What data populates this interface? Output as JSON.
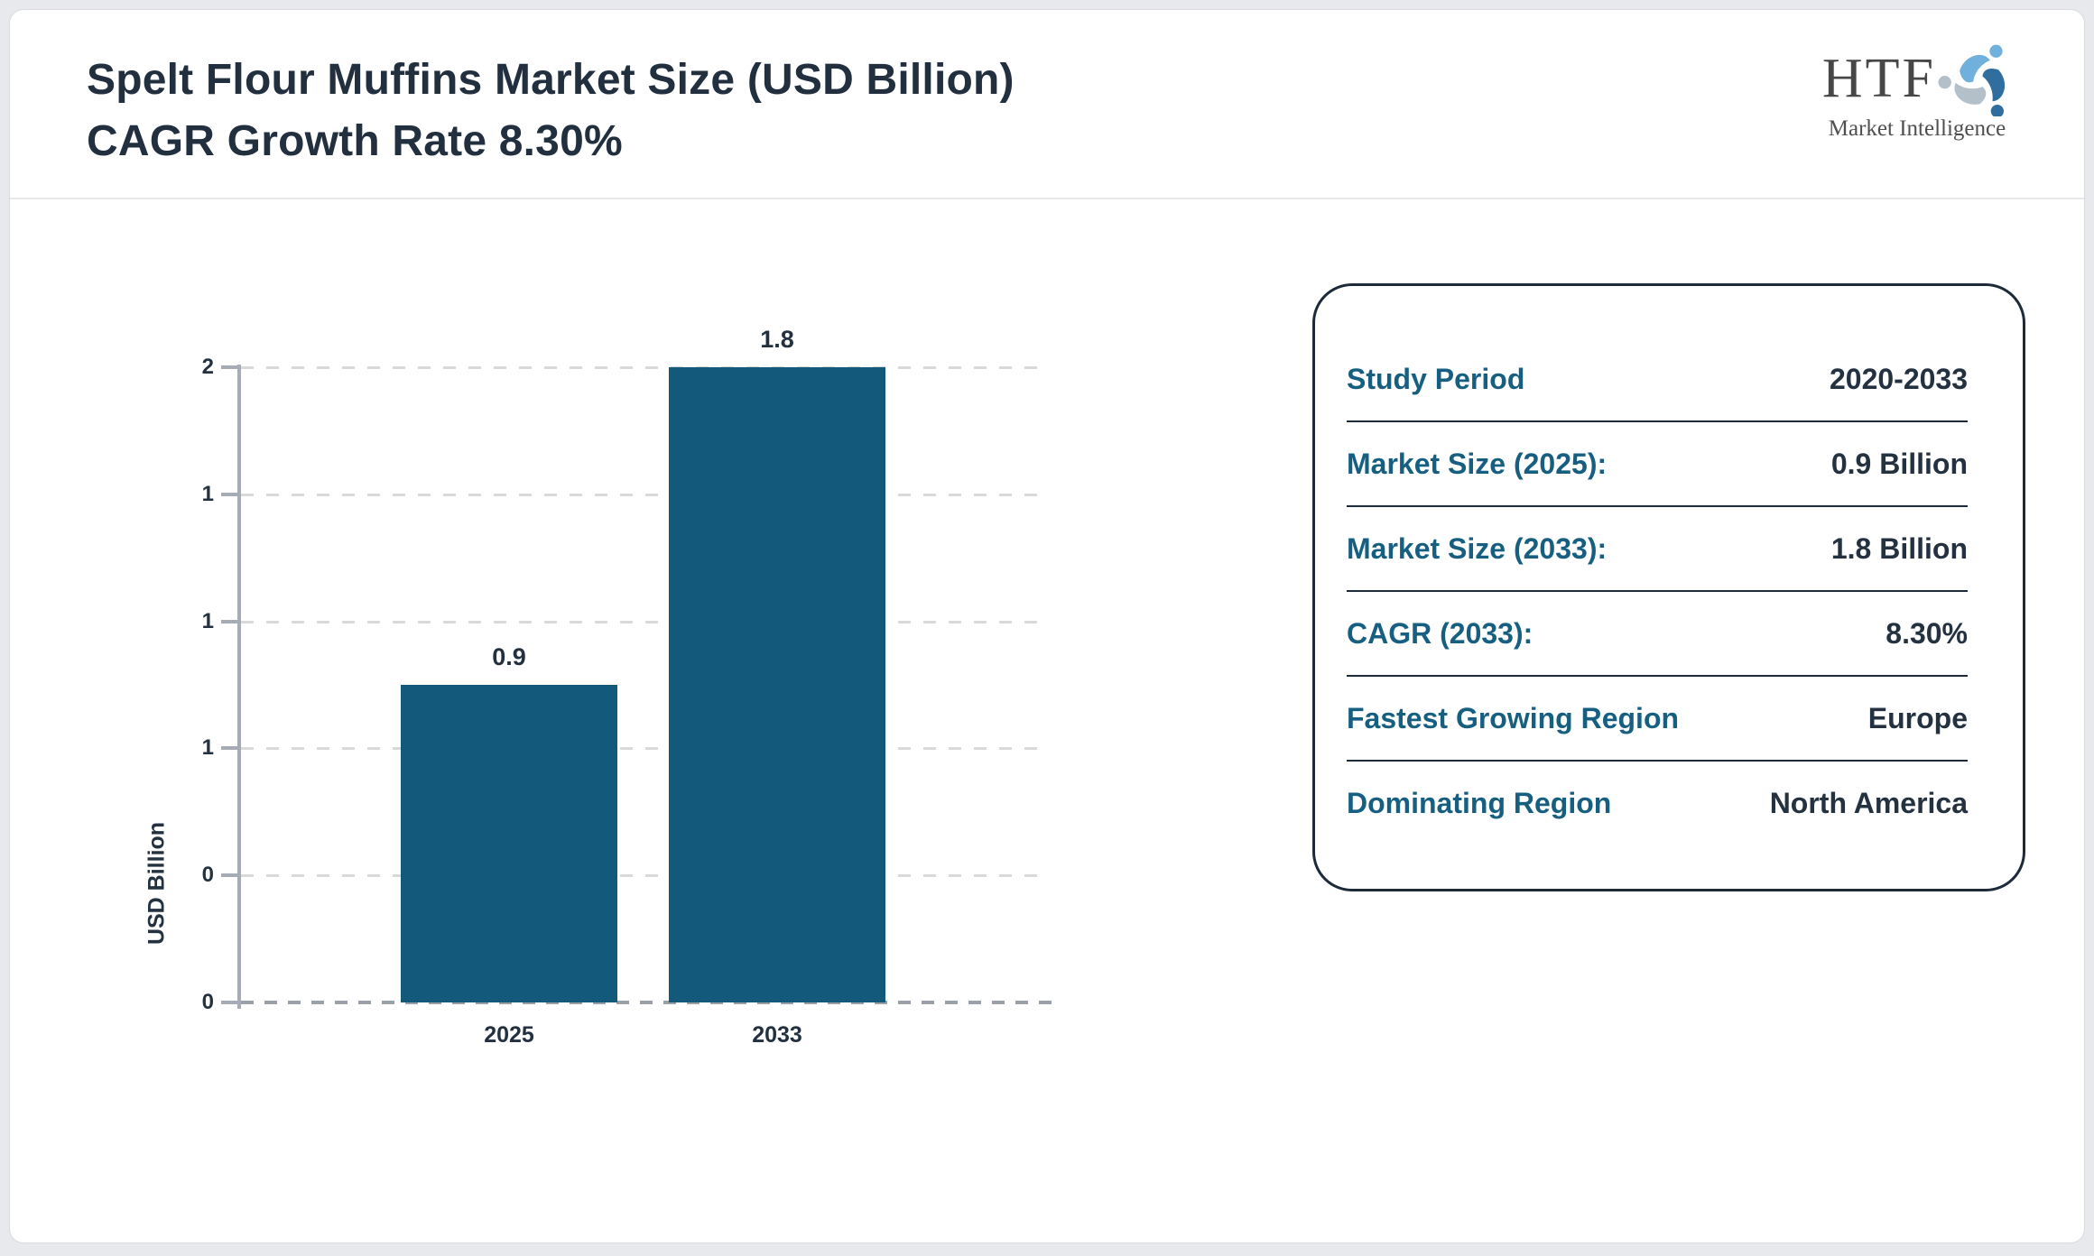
{
  "header": {
    "title_line1": "Spelt Flour Muffins Market Size (USD Billion)",
    "title_line2": "CAGR Growth Rate 8.30%"
  },
  "logo": {
    "text": "HTF",
    "subtitle": "Market Intelligence"
  },
  "chart_data": {
    "type": "bar",
    "title": "Spelt Flour Muffins Market Size (USD Billion), CAGR Growth Rate 8.30%",
    "categories": [
      "2025",
      "2033"
    ],
    "values": [
      0.9,
      1.8
    ],
    "bar_labels": [
      "0.9",
      "1.8"
    ],
    "xlabel": "",
    "ylabel": "USD Billion",
    "ylim": [
      0,
      1.8
    ],
    "y_ticks_top_to_bottom": [
      "2",
      "1",
      "1",
      "1",
      "0",
      "0"
    ],
    "grid": "horizontal-dashed",
    "legend": "none",
    "bar_color": "#13597c"
  },
  "info_panel": {
    "rows": [
      {
        "label": "Study Period",
        "value": "2020-2033"
      },
      {
        "label": "Market Size (2025):",
        "value": "0.9 Billion"
      },
      {
        "label": "Market Size (2033):",
        "value": "1.8 Billion"
      },
      {
        "label": "CAGR (2033):",
        "value": "8.30%"
      },
      {
        "label": "Fastest Growing Region",
        "value": "Europe"
      },
      {
        "label": "Dominating Region",
        "value": "North America"
      }
    ]
  },
  "colors": {
    "bar": "#13597c",
    "label_teal": "#175f80",
    "text_dark": "#233140",
    "panel_border": "#1c2a39",
    "grid": "#d9d9d9",
    "axis": "#a6acb6",
    "baseline": "#9ba1a9",
    "page_bg": "#e8e9ed",
    "card_border": "#d9dade",
    "divider": "#e7e7ec",
    "logo_light_blue": "#6fb0dc",
    "logo_gray": "#b3bfc9",
    "logo_dark_blue": "#2f6e9e"
  }
}
